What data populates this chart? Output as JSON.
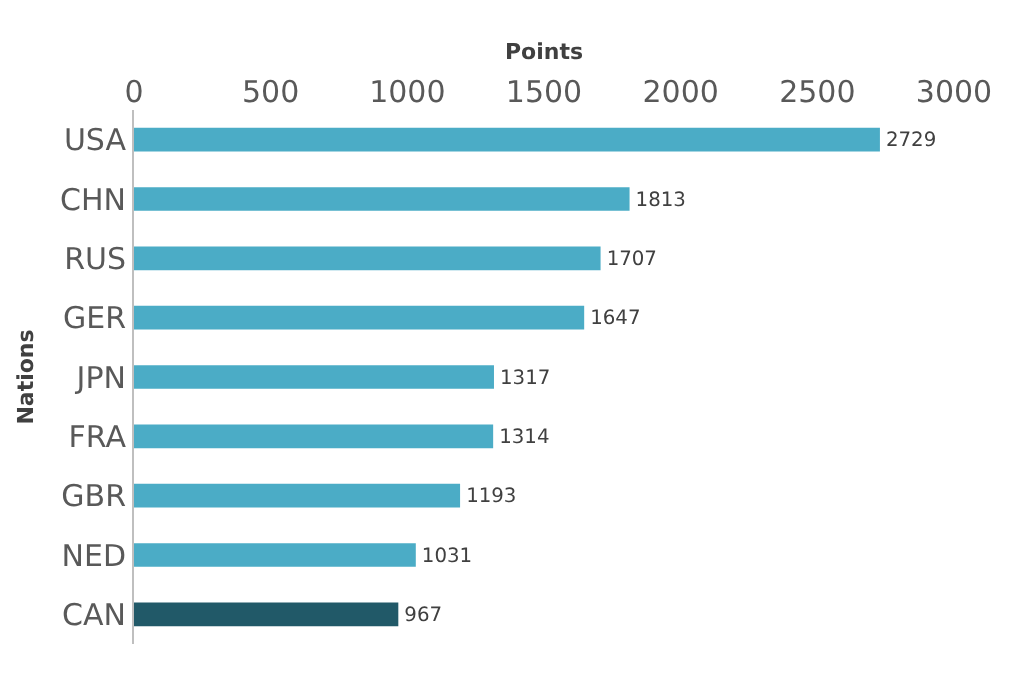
{
  "chart_data": {
    "type": "bar",
    "orientation": "horizontal",
    "xlabel": "Points",
    "ylabel": "Nations",
    "categories": [
      "USA",
      "CHN",
      "RUS",
      "GER",
      "JPN",
      "FRA",
      "GBR",
      "NED",
      "CAN"
    ],
    "values": [
      2729,
      1813,
      1707,
      1647,
      1317,
      1314,
      1193,
      1031,
      967
    ],
    "colors": [
      "#4bacc6",
      "#4bacc6",
      "#4bacc6",
      "#4bacc6",
      "#4bacc6",
      "#4bacc6",
      "#4bacc6",
      "#4bacc6",
      "#215968"
    ],
    "xlim": [
      0,
      3000
    ],
    "xticks": [
      0,
      500,
      1000,
      1500,
      2000,
      2500,
      3000
    ],
    "data_labels": true
  }
}
